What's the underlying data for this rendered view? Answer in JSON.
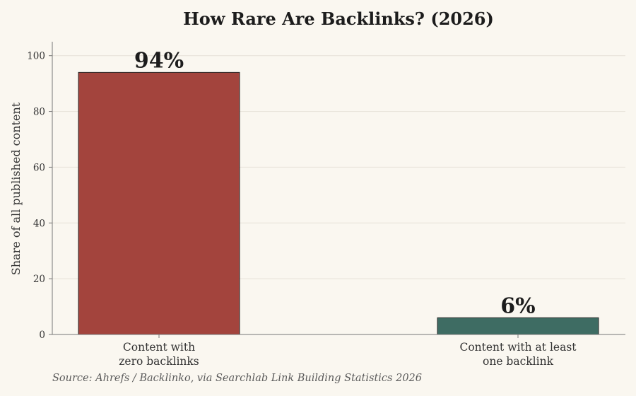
{
  "chart_data": {
    "type": "bar",
    "title": "How Rare Are Backlinks? (2026)",
    "ylabel": "Share of all published content",
    "xlabel": "",
    "ylim": [
      0,
      105
    ],
    "yticks": [
      0,
      20,
      40,
      60,
      80,
      100
    ],
    "grid": true,
    "categories": [
      [
        "Content with",
        "zero backlinks"
      ],
      [
        "Content with at least",
        "one backlink"
      ]
    ],
    "values": [
      94,
      6
    ],
    "data_labels": [
      "94%",
      "6%"
    ],
    "colors": [
      "#a3443d",
      "#3e6c63"
    ],
    "source": "Source: Ahrefs / Backlinko, via Searchlab Link Building Statistics 2026"
  },
  "colors": {
    "background": "#faf7f0",
    "axis": "#777777",
    "grid": "#e6e1d8",
    "text": "#222222",
    "tick_text": "#333333",
    "bar_edge": "#2a2a2a"
  }
}
